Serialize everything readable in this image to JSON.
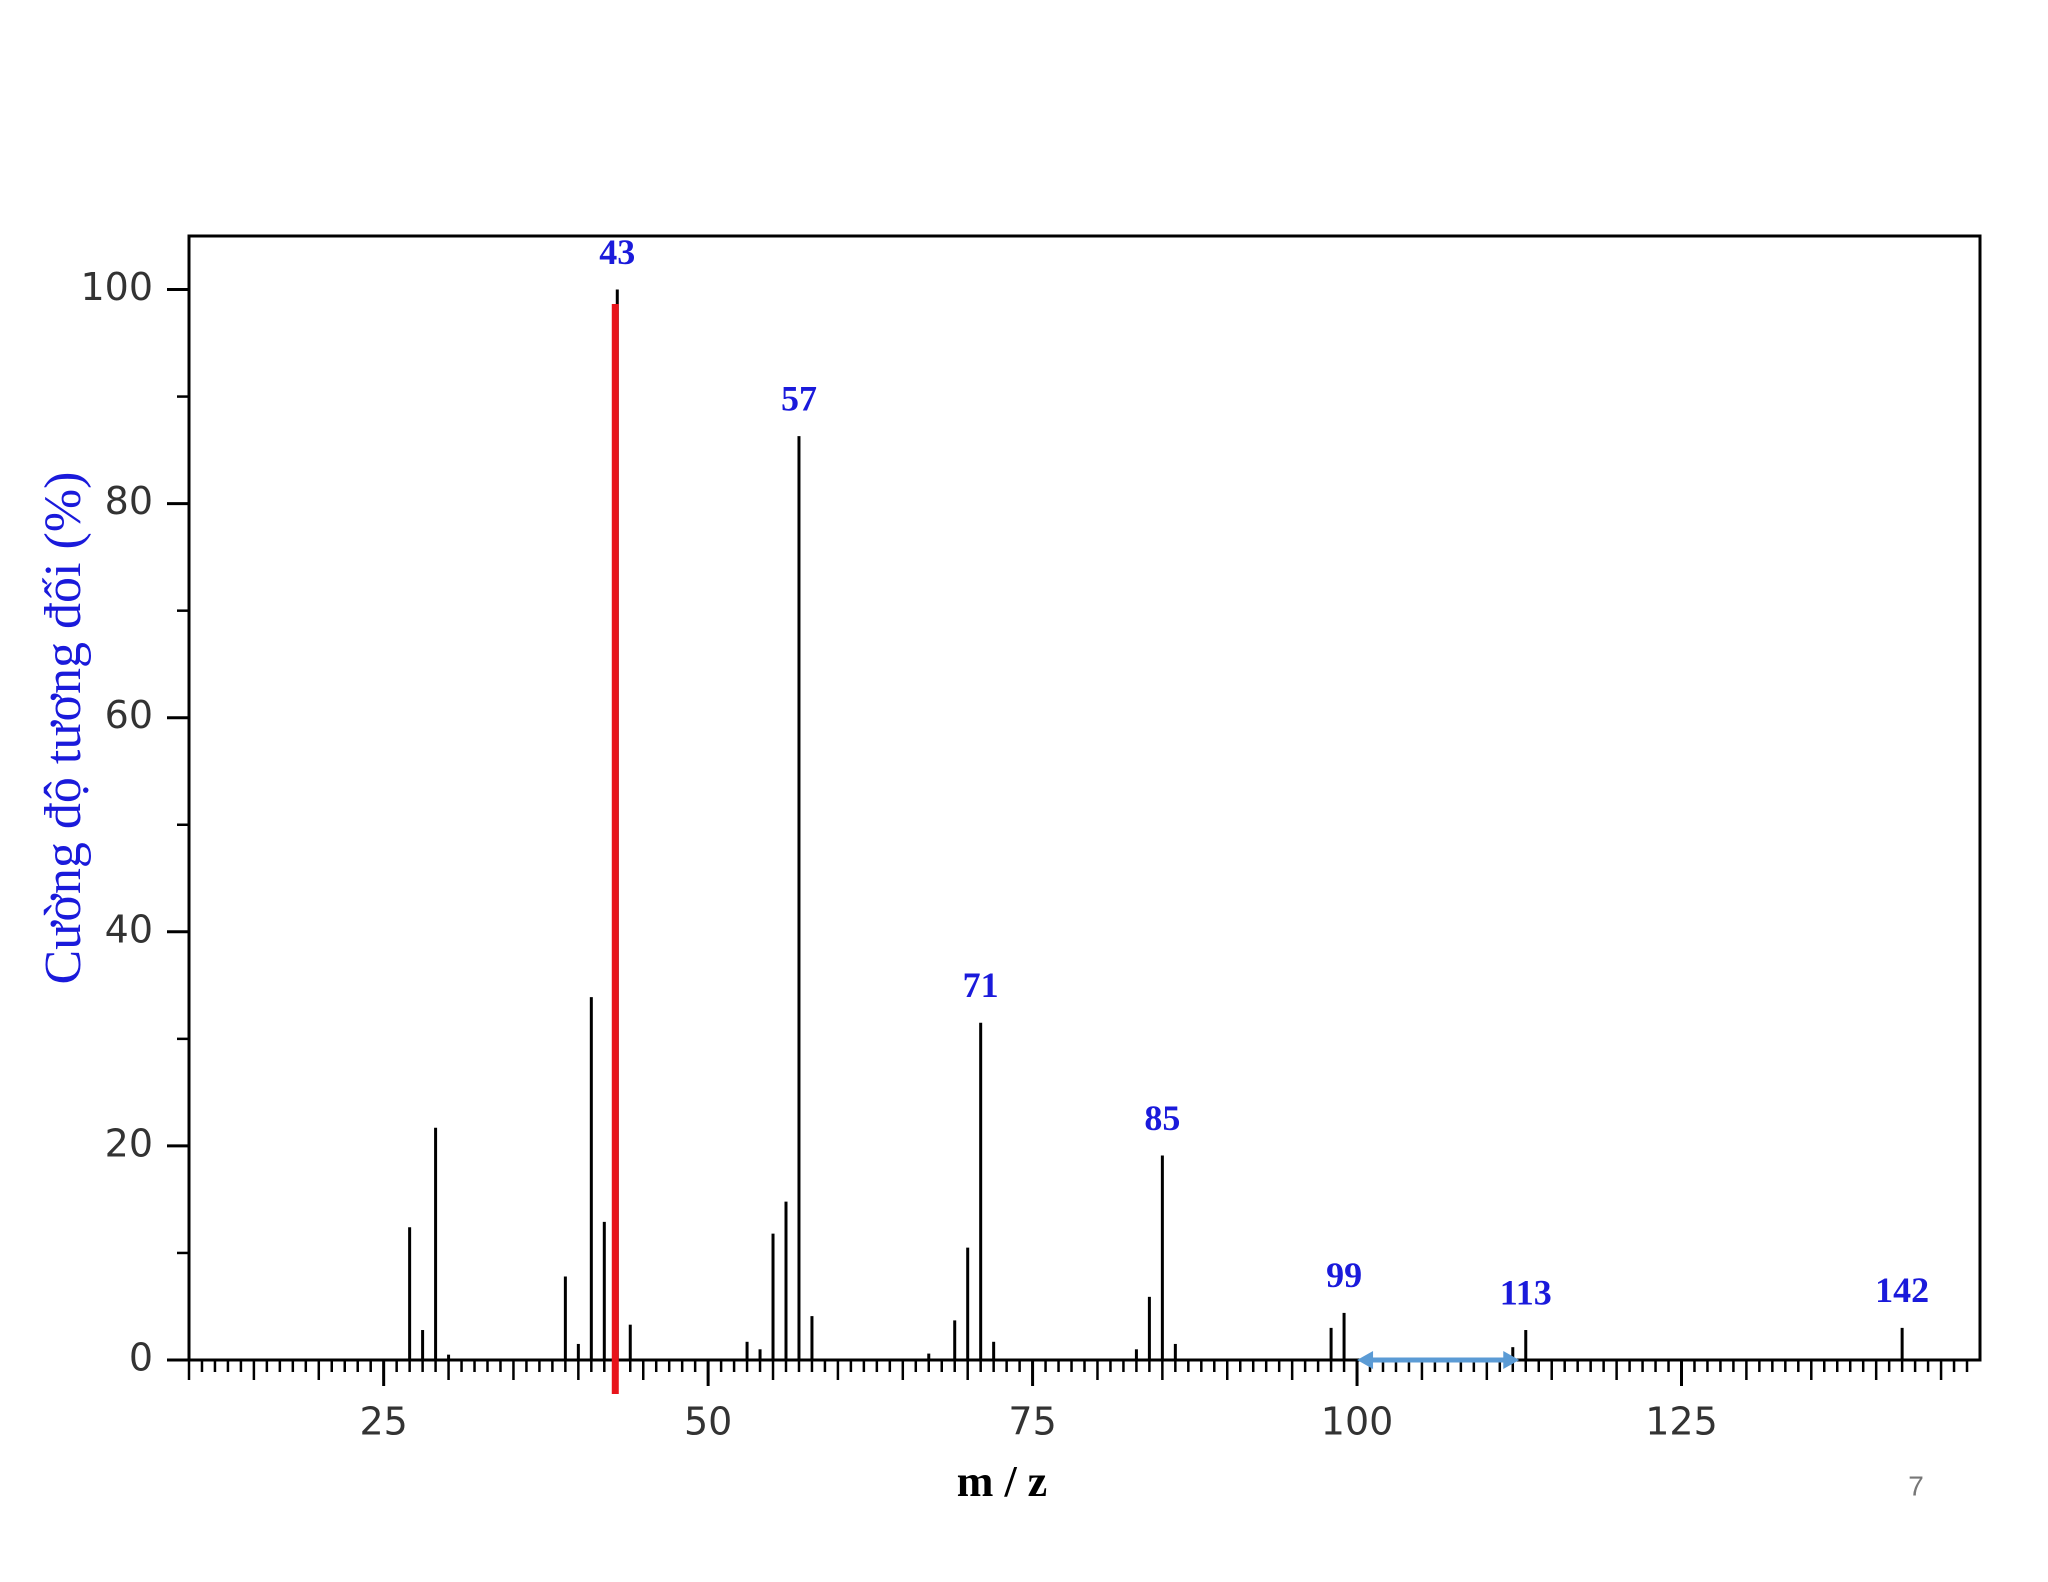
{
  "chart_data": {
    "type": "stick",
    "y_label": "Cường độ tương đối (%)",
    "x_label": "m / z",
    "page_number": "7",
    "x": [
      27,
      28,
      29,
      30,
      39,
      40,
      41,
      42,
      43,
      44,
      53,
      54,
      55,
      56,
      57,
      58,
      67,
      69,
      70,
      71,
      72,
      83,
      84,
      85,
      86,
      98,
      99,
      112,
      113,
      142
    ],
    "values": [
      12.4,
      2.8,
      21.7,
      0.5,
      7.8,
      1.5,
      33.9,
      12.9,
      100,
      3.3,
      1.7,
      1,
      11.8,
      14.8,
      86.3,
      4.1,
      0.6,
      3.7,
      10.5,
      31.5,
      1.7,
      1,
      5.9,
      19.1,
      1.5,
      3,
      4.4,
      1.2,
      2.8,
      3
    ],
    "color": "#000000",
    "peak_labels": [
      43,
      57,
      71,
      85,
      99,
      113,
      142
    ],
    "peak_label_color": "#1a1adb",
    "highlight": {
      "x": 43,
      "color": "#e8141b"
    },
    "arrow": {
      "from": 100,
      "to": 112.5,
      "color": "#5b9bd5"
    },
    "xlim": [
      10,
      148
    ],
    "xticks": [
      25,
      50,
      75,
      100,
      125
    ],
    "ylim": [
      0,
      105
    ],
    "yticks": [
      0,
      20,
      40,
      60,
      80,
      100
    ]
  }
}
